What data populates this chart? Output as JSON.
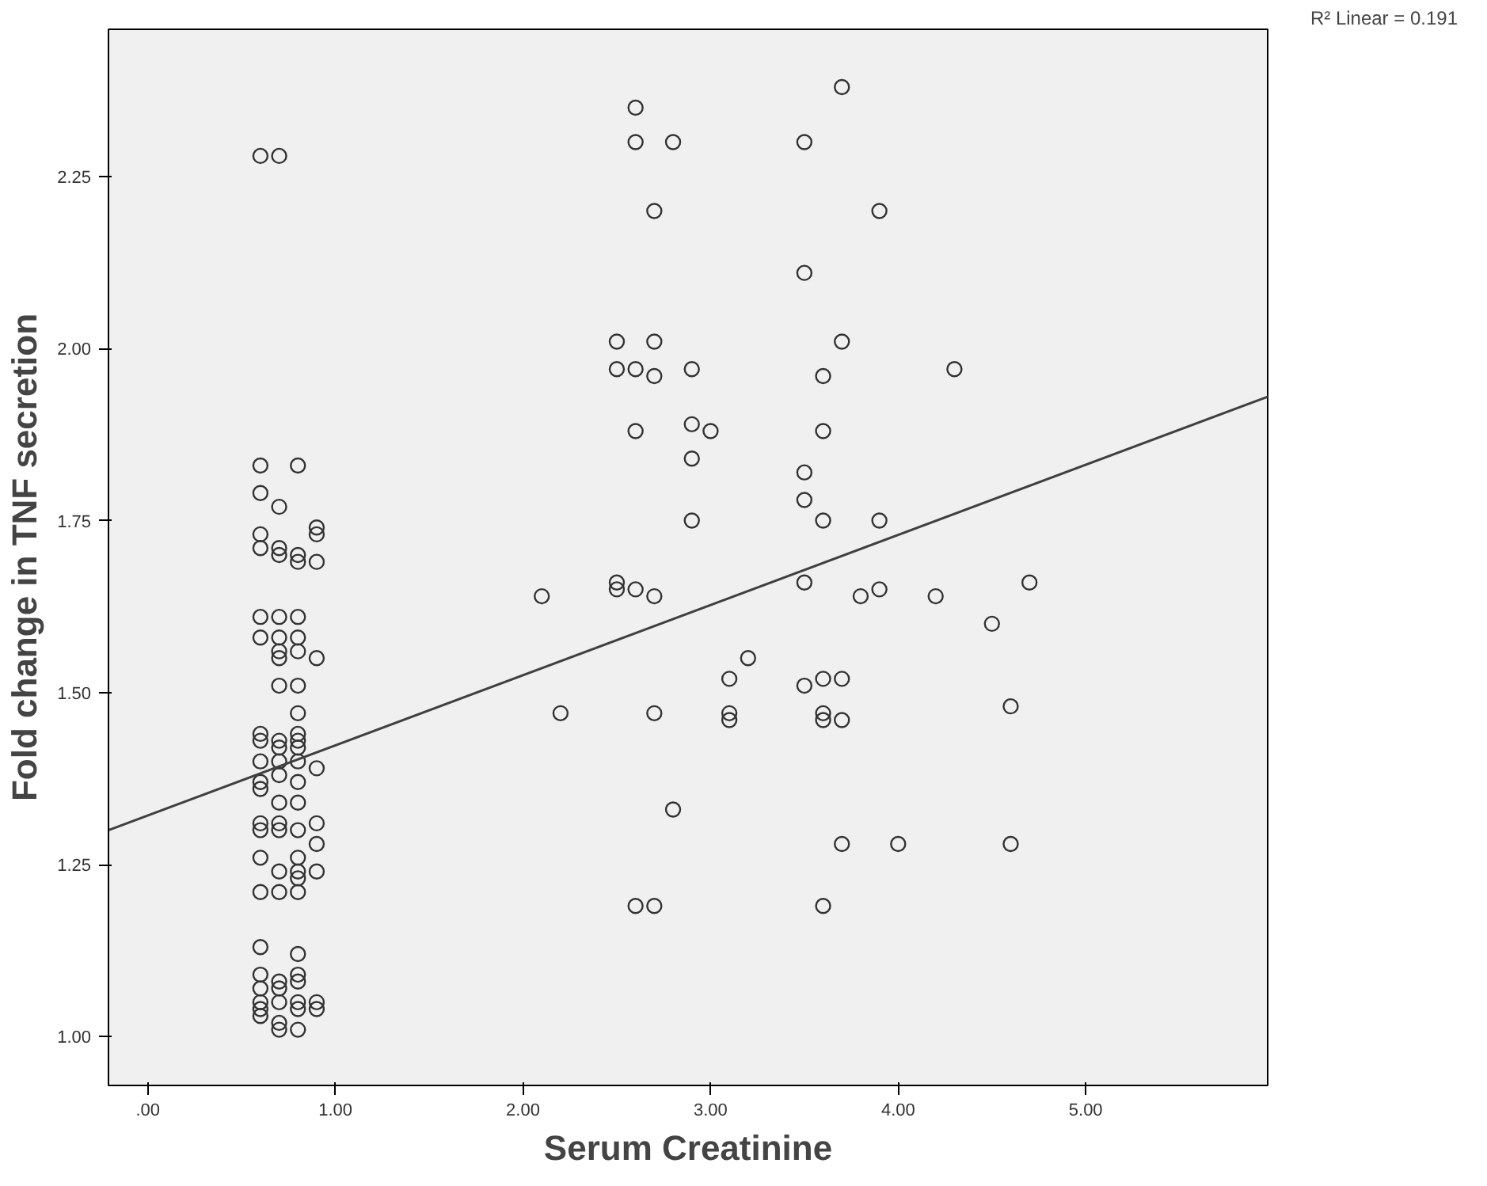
{
  "chart_data": {
    "type": "scatter",
    "xlabel": "Serum Creatinine",
    "ylabel": "Fold change in TNF secretion",
    "xlim": [
      -0.21,
      5.97
    ],
    "ylim": [
      0.929,
      2.464
    ],
    "xticks": [
      {
        "value": 0,
        "label": ".00"
      },
      {
        "value": 1,
        "label": "1.00"
      },
      {
        "value": 2,
        "label": "2.00"
      },
      {
        "value": 3,
        "label": "3.00"
      },
      {
        "value": 4,
        "label": "4.00"
      },
      {
        "value": 5,
        "label": "5.00"
      }
    ],
    "yticks": [
      {
        "value": 1,
        "label": "1.00"
      },
      {
        "value": 1.25,
        "label": "1.25"
      },
      {
        "value": 1.5,
        "label": "1.50"
      },
      {
        "value": 1.75,
        "label": "1.75"
      },
      {
        "value": 2,
        "label": "2.00"
      },
      {
        "value": 2.25,
        "label": "2.25"
      }
    ],
    "grid": false,
    "annotations": [
      "R² Linear = 0.191"
    ],
    "series": [
      {
        "type": "scatter",
        "marker": "circle",
        "color": "#333333",
        "x": [
          0.6,
          0.6,
          0.6,
          0.6,
          0.6,
          0.6,
          0.6,
          0.6,
          0.6,
          0.6,
          0.6,
          0.6,
          0.6,
          0.6,
          0.6,
          0.6,
          0.6,
          0.6,
          0.6,
          0.6,
          0.6,
          0.6,
          0.7,
          0.7,
          0.7,
          0.7,
          0.7,
          0.7,
          0.7,
          0.7,
          0.7,
          0.7,
          0.7,
          0.7,
          0.7,
          0.7,
          0.7,
          0.7,
          0.7,
          0.7,
          0.7,
          0.7,
          0.7,
          0.7,
          0.7,
          0.8,
          0.8,
          0.8,
          0.8,
          0.8,
          0.8,
          0.8,
          0.8,
          0.8,
          0.8,
          0.8,
          0.8,
          0.8,
          0.8,
          0.8,
          0.8,
          0.8,
          0.8,
          0.8,
          0.8,
          0.8,
          0.8,
          0.8,
          0.8,
          0.8,
          0.9,
          0.9,
          0.9,
          0.9,
          0.9,
          0.9,
          0.9,
          0.9,
          0.9,
          0.9,
          2.1,
          2.2,
          2.5,
          2.5,
          2.5,
          2.5,
          2.6,
          2.6,
          2.6,
          2.6,
          2.6,
          2.6,
          2.7,
          2.7,
          2.7,
          2.7,
          2.7,
          2.7,
          2.8,
          2.8,
          2.9,
          2.9,
          2.9,
          2.9,
          3.0,
          3.1,
          3.1,
          3.1,
          3.2,
          3.5,
          3.5,
          3.5,
          3.5,
          3.5,
          3.5,
          3.6,
          3.6,
          3.6,
          3.6,
          3.6,
          3.6,
          3.6,
          3.7,
          3.7,
          3.7,
          3.7,
          3.7,
          3.8,
          3.9,
          3.9,
          3.9,
          4.0,
          4.2,
          4.3,
          4.5,
          4.6,
          4.6,
          4.7
        ],
        "values": [
          2.28,
          1.83,
          1.79,
          1.73,
          1.71,
          1.61,
          1.58,
          1.44,
          1.43,
          1.4,
          1.37,
          1.36,
          1.31,
          1.3,
          1.26,
          1.21,
          1.13,
          1.09,
          1.07,
          1.05,
          1.04,
          1.03,
          2.28,
          1.77,
          1.71,
          1.7,
          1.61,
          1.58,
          1.56,
          1.55,
          1.51,
          1.43,
          1.42,
          1.4,
          1.38,
          1.34,
          1.31,
          1.3,
          1.24,
          1.21,
          1.08,
          1.07,
          1.05,
          1.02,
          1.01,
          1.83,
          1.7,
          1.69,
          1.61,
          1.58,
          1.56,
          1.51,
          1.47,
          1.44,
          1.43,
          1.42,
          1.4,
          1.37,
          1.34,
          1.3,
          1.26,
          1.24,
          1.23,
          1.21,
          1.12,
          1.09,
          1.08,
          1.05,
          1.04,
          1.01,
          1.74,
          1.73,
          1.69,
          1.55,
          1.39,
          1.31,
          1.28,
          1.24,
          1.05,
          1.04,
          1.64,
          1.47,
          2.01,
          1.97,
          1.66,
          1.65,
          2.35,
          2.3,
          1.97,
          1.88,
          1.65,
          1.19,
          2.2,
          2.01,
          1.96,
          1.64,
          1.47,
          1.19,
          2.3,
          1.33,
          1.97,
          1.89,
          1.84,
          1.75,
          1.88,
          1.52,
          1.47,
          1.46,
          1.55,
          2.3,
          2.11,
          1.82,
          1.78,
          1.66,
          1.51,
          1.96,
          1.88,
          1.75,
          1.52,
          1.47,
          1.46,
          1.19,
          2.38,
          2.01,
          1.52,
          1.46,
          1.28,
          1.64,
          2.2,
          1.75,
          1.65,
          1.28,
          1.64,
          1.97,
          1.6,
          1.48,
          1.28,
          1.66
        ]
      },
      {
        "type": "line",
        "marker": "none",
        "color": "#404040",
        "line_style": "solid",
        "x": [
          -0.21,
          5.97
        ],
        "values": [
          1.3,
          1.93
        ]
      }
    ]
  }
}
